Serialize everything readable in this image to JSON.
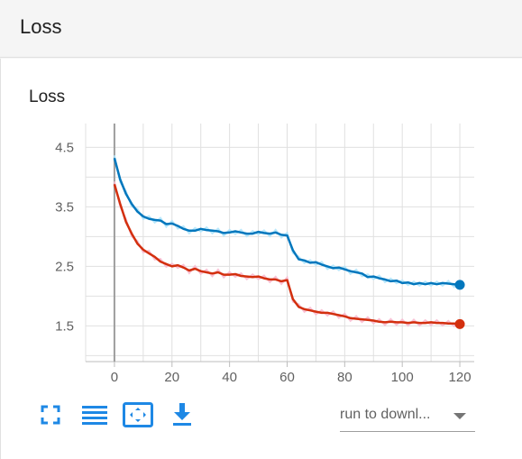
{
  "section": {
    "title": "Loss"
  },
  "card": {
    "title": "Loss"
  },
  "toolbar": {
    "icons": [
      "fullscreen-icon",
      "data-table-icon",
      "fit-domain-icon",
      "download-icon"
    ],
    "accent": "#1e88e5"
  },
  "run_select": {
    "label": "run to downl..."
  },
  "chart_data": {
    "type": "line",
    "title": "Loss",
    "xlabel": "",
    "ylabel": "",
    "xlim": [
      -10,
      125
    ],
    "ylim": [
      0.9,
      4.9
    ],
    "xticks": [
      0,
      20,
      40,
      60,
      80,
      100,
      120
    ],
    "yticks": [
      1.5,
      2.5,
      3.5,
      4.5
    ],
    "grid": true,
    "series": [
      {
        "color": "#0277bd",
        "smooth_color": "#b3e5fc",
        "x": [
          0,
          2,
          4,
          6,
          8,
          10,
          12,
          14,
          16,
          18,
          20,
          22,
          24,
          26,
          28,
          30,
          32,
          34,
          36,
          38,
          40,
          42,
          44,
          46,
          48,
          50,
          52,
          54,
          56,
          58,
          60,
          62,
          64,
          66,
          68,
          70,
          72,
          74,
          76,
          78,
          80,
          82,
          84,
          86,
          88,
          90,
          92,
          94,
          96,
          98,
          100,
          102,
          104,
          106,
          108,
          110,
          112,
          114,
          116,
          118,
          120
        ],
        "values": [
          4.32,
          3.96,
          3.72,
          3.55,
          3.42,
          3.34,
          3.3,
          3.28,
          3.27,
          3.21,
          3.22,
          3.18,
          3.13,
          3.1,
          3.1,
          3.13,
          3.11,
          3.1,
          3.09,
          3.06,
          3.07,
          3.09,
          3.07,
          3.05,
          3.05,
          3.08,
          3.06,
          3.05,
          3.07,
          3.03,
          3.02,
          2.77,
          2.62,
          2.6,
          2.56,
          2.57,
          2.53,
          2.5,
          2.47,
          2.48,
          2.45,
          2.42,
          2.4,
          2.38,
          2.32,
          2.33,
          2.3,
          2.28,
          2.25,
          2.26,
          2.22,
          2.23,
          2.2,
          2.22,
          2.2,
          2.22,
          2.2,
          2.22,
          2.21,
          2.2,
          2.19
        ]
      },
      {
        "color": "#d32f0e",
        "smooth_color": "#f8bbd0",
        "x": [
          0,
          2,
          4,
          6,
          8,
          10,
          12,
          14,
          16,
          18,
          20,
          22,
          24,
          26,
          28,
          30,
          32,
          34,
          36,
          38,
          40,
          42,
          44,
          46,
          48,
          50,
          52,
          54,
          56,
          58,
          60,
          62,
          64,
          66,
          68,
          70,
          72,
          74,
          76,
          78,
          80,
          82,
          84,
          86,
          88,
          90,
          92,
          94,
          96,
          98,
          100,
          102,
          104,
          106,
          108,
          110,
          112,
          114,
          116,
          118,
          120
        ],
        "values": [
          3.88,
          3.55,
          3.25,
          3.05,
          2.88,
          2.78,
          2.72,
          2.66,
          2.58,
          2.54,
          2.5,
          2.52,
          2.48,
          2.43,
          2.46,
          2.42,
          2.4,
          2.38,
          2.4,
          2.36,
          2.36,
          2.37,
          2.34,
          2.33,
          2.32,
          2.33,
          2.3,
          2.28,
          2.28,
          2.25,
          2.27,
          1.95,
          1.82,
          1.78,
          1.76,
          1.74,
          1.72,
          1.72,
          1.7,
          1.68,
          1.66,
          1.63,
          1.62,
          1.61,
          1.6,
          1.59,
          1.57,
          1.56,
          1.57,
          1.56,
          1.56,
          1.55,
          1.56,
          1.55,
          1.55,
          1.56,
          1.55,
          1.55,
          1.54,
          1.54,
          1.53
        ]
      }
    ]
  }
}
